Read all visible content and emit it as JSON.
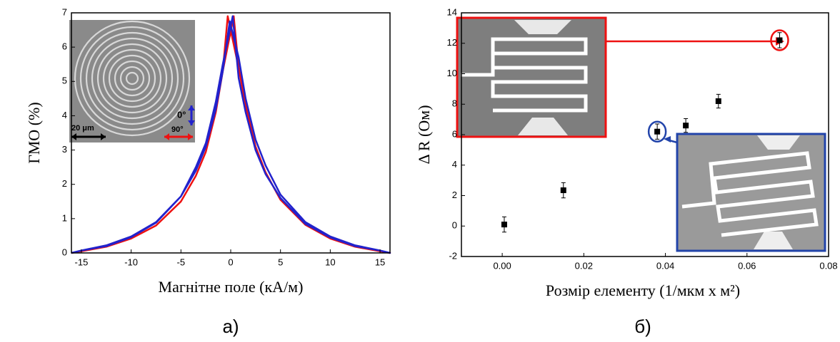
{
  "chart_data": [
    {
      "type": "line",
      "y_label": "ГМО (%)",
      "x_label": "Магнітне поле (кА/м)",
      "caption": "а)",
      "inset_scale": "20 μm",
      "xlim": [
        -16,
        16
      ],
      "xticks": [
        -15,
        -10,
        -5,
        0,
        5,
        10,
        15
      ],
      "ylim": [
        0,
        7
      ],
      "yticks": [
        0,
        1,
        2,
        3,
        4,
        5,
        6,
        7
      ],
      "series": [
        {
          "name": "0°",
          "color": "#2222cc",
          "x": [
            -16,
            -15,
            -12.5,
            -10,
            -7.5,
            -5,
            -3.5,
            -2.5,
            -1.5,
            -0.8,
            -0.1,
            0.8,
            1.5,
            2.5,
            3.5,
            5,
            7.5,
            10,
            12.5,
            15,
            16,
            15,
            12.5,
            10,
            7.5,
            5,
            3.5,
            2.5,
            1.5,
            0.8,
            0.2,
            -0.8,
            -1.5,
            -2.5,
            -3.5,
            -5,
            -7.5,
            -10,
            -12.5,
            -15,
            -16
          ],
          "values": [
            0,
            0.07,
            0.22,
            0.48,
            0.9,
            1.65,
            2.4,
            3.1,
            4.2,
            5.3,
            6.75,
            5.7,
            4.5,
            3.3,
            2.55,
            1.7,
            0.9,
            0.48,
            0.22,
            0.07,
            0,
            0.07,
            0.2,
            0.45,
            0.85,
            1.6,
            2.3,
            3.0,
            4.1,
            5.1,
            6.9,
            5.5,
            4.4,
            3.2,
            2.5,
            1.65,
            0.88,
            0.46,
            0.2,
            0.07,
            0
          ]
        },
        {
          "name": "90°",
          "color": "#ee1111",
          "x": [
            -16,
            -15,
            -12.5,
            -10,
            -7.5,
            -5,
            -3.5,
            -2.5,
            -1.5,
            -0.8,
            -0.3,
            0.8,
            1.5,
            2.5,
            3.5,
            5,
            7.5,
            10,
            12.5,
            15,
            16,
            15,
            12.5,
            10,
            7.5,
            5,
            3.5,
            2.5,
            1.5,
            0.8,
            0.3,
            -0.8,
            -1.5,
            -2.5,
            -3.5,
            -5,
            -7.5,
            -10,
            -12.5,
            -15,
            -16
          ],
          "values": [
            0,
            0.05,
            0.18,
            0.42,
            0.8,
            1.5,
            2.25,
            2.95,
            4.1,
            5.3,
            6.9,
            5.4,
            4.3,
            3.1,
            2.35,
            1.55,
            0.82,
            0.42,
            0.18,
            0.05,
            0,
            0.05,
            0.18,
            0.42,
            0.82,
            1.55,
            2.35,
            3.1,
            4.3,
            5.4,
            6.9,
            5.3,
            4.1,
            2.95,
            2.25,
            1.5,
            0.8,
            0.42,
            0.18,
            0.05,
            0
          ]
        }
      ]
    },
    {
      "type": "scatter",
      "y_label": "Δ R (Ом)",
      "x_label": "Розмір елементу (1/мкм x м²)",
      "caption": "б)",
      "color": "#000000",
      "xlim": [
        -0.01,
        0.08
      ],
      "xticks": [
        {
          "value": 0,
          "label": "0.00"
        },
        0.02,
        0.04,
        0.06,
        {
          "value": 0.08,
          "label": "0.08"
        }
      ],
      "ylim": [
        -2,
        14
      ],
      "yticks": [
        -2,
        0,
        2,
        4,
        6,
        8,
        10,
        12,
        14
      ],
      "x": [
        0.0005,
        0.015,
        0.038,
        0.045,
        0.053,
        0.068
      ],
      "values": [
        0.1,
        2.35,
        6.2,
        6.6,
        8.2,
        12.2
      ],
      "errors": [
        0.5,
        0.5,
        0.5,
        0.45,
        0.45,
        0.5
      ]
    }
  ]
}
